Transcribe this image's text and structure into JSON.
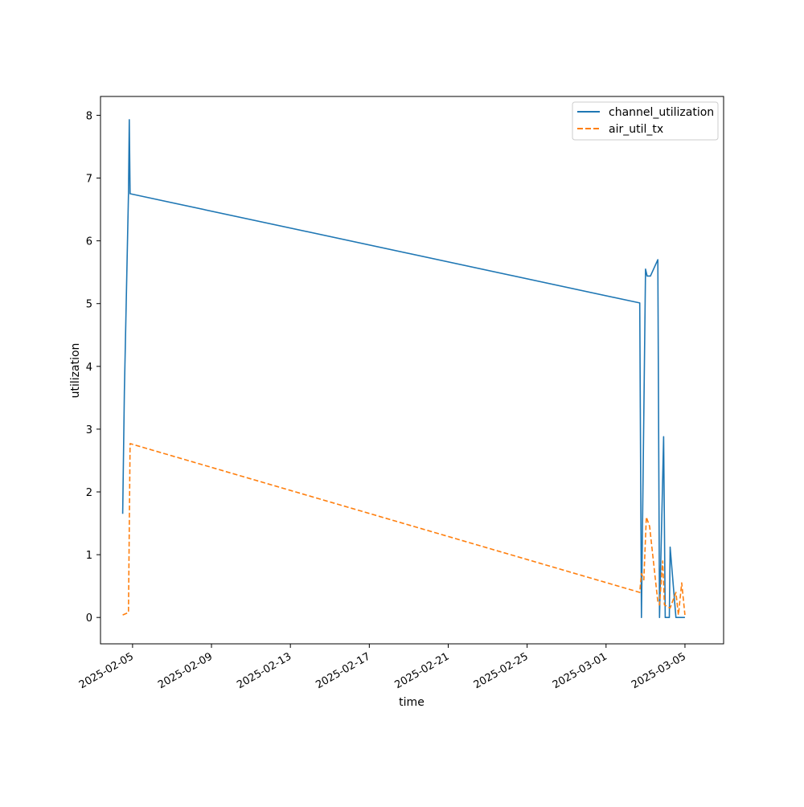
{
  "chart_data": {
    "type": "line",
    "title": "",
    "xlabel": "time",
    "ylabel": "utilization",
    "xlim": [
      "2025-02-03T09:00",
      "2025-03-06T23:00"
    ],
    "ylim": [
      -0.42,
      8.3
    ],
    "x_ticks": [
      "2025-02-05",
      "2025-02-09",
      "2025-02-13",
      "2025-02-17",
      "2025-02-21",
      "2025-02-25",
      "2025-03-01",
      "2025-03-05"
    ],
    "y_ticks": [
      0,
      1,
      2,
      3,
      4,
      5,
      6,
      7,
      8
    ],
    "grid": false,
    "legend_position": "upper right",
    "series": [
      {
        "name": "channel_utilization",
        "color": "#1f77b4",
        "style": "solid",
        "points": [
          [
            "2025-02-04T12:00",
            1.65
          ],
          [
            "2025-02-04T14:00",
            3.6
          ],
          [
            "2025-02-04T19:00",
            6.75
          ],
          [
            "2025-02-04T20:00",
            7.93
          ],
          [
            "2025-02-04T21:00",
            6.75
          ],
          [
            "2025-03-02T17:00",
            5.01
          ],
          [
            "2025-03-02T19:00",
            0.0
          ],
          [
            "2025-03-03T00:00",
            5.55
          ],
          [
            "2025-03-03T02:00",
            5.44
          ],
          [
            "2025-03-03T06:00",
            5.44
          ],
          [
            "2025-03-03T15:00",
            5.7
          ],
          [
            "2025-03-03T17:00",
            0.0
          ],
          [
            "2025-03-03T22:00",
            2.88
          ],
          [
            "2025-03-04T00:00",
            0.0
          ],
          [
            "2025-03-04T05:00",
            0.0
          ],
          [
            "2025-03-04T06:00",
            1.12
          ],
          [
            "2025-03-04T13:00",
            0.0
          ],
          [
            "2025-03-05T00:00",
            0.0
          ]
        ]
      },
      {
        "name": "air_util_tx",
        "color": "#ff7f0e",
        "style": "dashed",
        "points": [
          [
            "2025-02-04T12:00",
            0.04
          ],
          [
            "2025-02-04T19:00",
            0.08
          ],
          [
            "2025-02-04T21:00",
            2.77
          ],
          [
            "2025-03-02T17:00",
            0.4
          ],
          [
            "2025-03-02T19:00",
            0.7
          ],
          [
            "2025-03-02T22:00",
            0.6
          ],
          [
            "2025-03-03T01:00",
            1.6
          ],
          [
            "2025-03-03T05:00",
            1.45
          ],
          [
            "2025-03-03T15:00",
            0.25
          ],
          [
            "2025-03-03T17:00",
            0.2
          ],
          [
            "2025-03-03T21:00",
            0.9
          ],
          [
            "2025-03-03T23:00",
            0.2
          ],
          [
            "2025-03-04T06:00",
            0.15
          ],
          [
            "2025-03-04T13:00",
            0.4
          ],
          [
            "2025-03-04T16:00",
            0.04
          ],
          [
            "2025-03-04T20:00",
            0.55
          ],
          [
            "2025-03-05T00:00",
            0.04
          ]
        ]
      }
    ]
  }
}
